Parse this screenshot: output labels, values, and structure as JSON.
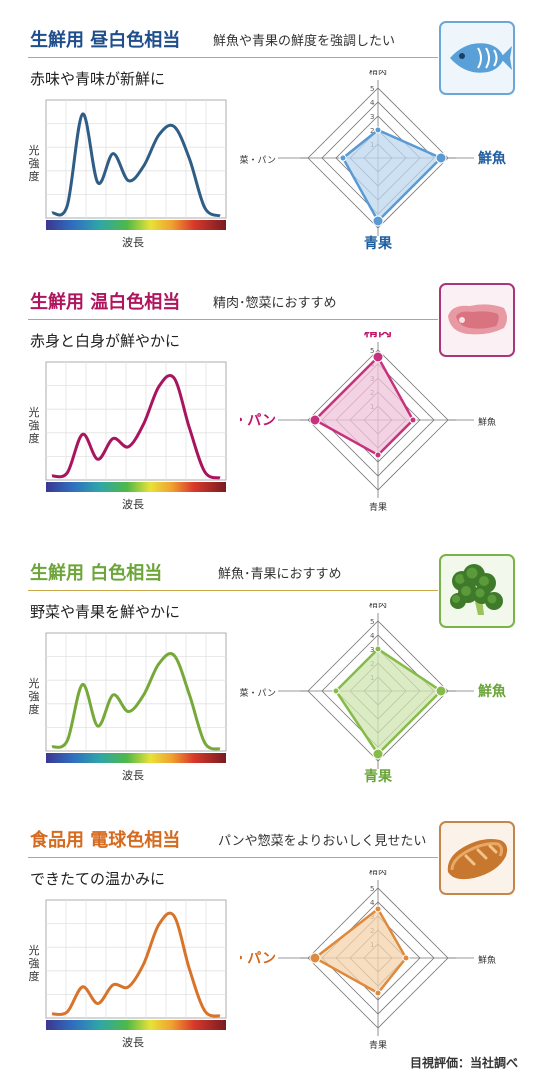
{
  "sections": [
    {
      "title": "生鮮用 昼白色相当",
      "tagline": "鮮魚や青果の鮮度を強調したい",
      "subtitle": "赤味や青味が新鮮に",
      "icon": "fish-icon",
      "color": "#2f5d85",
      "accent": "#1f5fa0",
      "radar_line": "#5a9ad4",
      "radar_fill": "#bcd7ef",
      "title_color": "#1f4e8c",
      "thumb_border": "#6aa7d8",
      "spectrum_y": [
        0.03,
        0.1,
        0.98,
        0.32,
        0.6,
        0.34,
        0.48,
        0.78,
        0.86,
        0.55,
        0.08,
        0.0
      ],
      "radar_values": {
        "精肉": 2.0,
        "鮮魚": 4.5,
        "青果": 4.5,
        "惣菜・パン": 2.5
      },
      "emphasis": [
        "鮮魚",
        "青果"
      ]
    },
    {
      "title": "生鮮用 温白色相当",
      "tagline": "精肉･惣菜におすすめ",
      "subtitle": "赤身と白身が鮮やかに",
      "icon": "meat-icon",
      "color": "#a8155e",
      "accent": "#c0146a",
      "radar_line": "#c8307e",
      "radar_fill": "#efc3d9",
      "title_color": "#b0145e",
      "thumb_border": "#a9357a",
      "spectrum_y": [
        0.02,
        0.05,
        0.42,
        0.18,
        0.38,
        0.3,
        0.52,
        0.88,
        0.96,
        0.48,
        0.06,
        0.0
      ],
      "radar_values": {
        "精肉": 4.5,
        "鮮魚": 2.5,
        "青果": 2.5,
        "惣菜・パン": 4.5
      },
      "emphasis": [
        "精肉",
        "惣菜・パン"
      ]
    },
    {
      "title": "生鮮用 白色相当",
      "tagline": "鮮魚･青果におすすめ",
      "subtitle": "野菜や青果を鮮やかに",
      "icon": "broccoli-icon",
      "color": "#77a93a",
      "accent": "#6aa43a",
      "radar_line": "#86bb48",
      "radar_fill": "#cfe6b2",
      "title_color": "#6da53b",
      "thumb_border": "#7cb24a",
      "spectrum_y": [
        0.02,
        0.08,
        0.62,
        0.22,
        0.52,
        0.36,
        0.52,
        0.82,
        0.9,
        0.52,
        0.06,
        0.0
      ],
      "radar_values": {
        "精肉": 3.0,
        "鮮魚": 4.5,
        "青果": 4.5,
        "惣菜・パン": 3.0
      },
      "emphasis": [
        "鮮魚",
        "青果"
      ]
    },
    {
      "title": "食品用 電球色相当",
      "tagline": "パンや惣菜をよりおいしく見せたい",
      "subtitle": "できたての温かみに",
      "icon": "bread-icon",
      "color": "#d8742a",
      "accent": "#d06a1e",
      "radar_line": "#de8a3e",
      "radar_fill": "#f6d3ac",
      "title_color": "#d66b1f",
      "thumb_border": "#c6854a",
      "spectrum_y": [
        0.02,
        0.04,
        0.28,
        0.12,
        0.3,
        0.28,
        0.5,
        0.88,
        0.96,
        0.45,
        0.05,
        0.0
      ],
      "radar_values": {
        "精肉": 3.5,
        "鮮魚": 2.0,
        "青果": 2.5,
        "惣菜・パン": 4.5
      },
      "emphasis": [
        "惣菜・パン"
      ]
    }
  ],
  "axis_labels": {
    "y": "光強度",
    "x": "波長"
  },
  "radar_axes": [
    "精肉",
    "鮮魚",
    "青果",
    "惣菜・パン"
  ],
  "radar_ticks": [
    "1",
    "2",
    "3",
    "4",
    "5"
  ],
  "footer": "目視評価：当社調べ",
  "chart_data": [
    {
      "type": "radar",
      "axes": [
        "精肉",
        "鮮魚",
        "青果",
        "惣菜・パン"
      ],
      "values": [
        2.0,
        4.5,
        4.5,
        2.5
      ],
      "range": [
        0,
        5
      ]
    },
    {
      "type": "radar",
      "axes": [
        "精肉",
        "鮮魚",
        "青果",
        "惣菜・パン"
      ],
      "values": [
        4.5,
        2.5,
        2.5,
        4.5
      ],
      "range": [
        0,
        5
      ]
    },
    {
      "type": "radar",
      "axes": [
        "精肉",
        "鮮魚",
        "青果",
        "惣菜・パン"
      ],
      "values": [
        3.0,
        4.5,
        4.5,
        3.0
      ],
      "range": [
        0,
        5
      ]
    },
    {
      "type": "radar",
      "axes": [
        "精肉",
        "鮮魚",
        "青果",
        "惣菜・パン"
      ],
      "values": [
        3.5,
        2.0,
        2.5,
        4.5
      ],
      "range": [
        0,
        5
      ]
    }
  ]
}
